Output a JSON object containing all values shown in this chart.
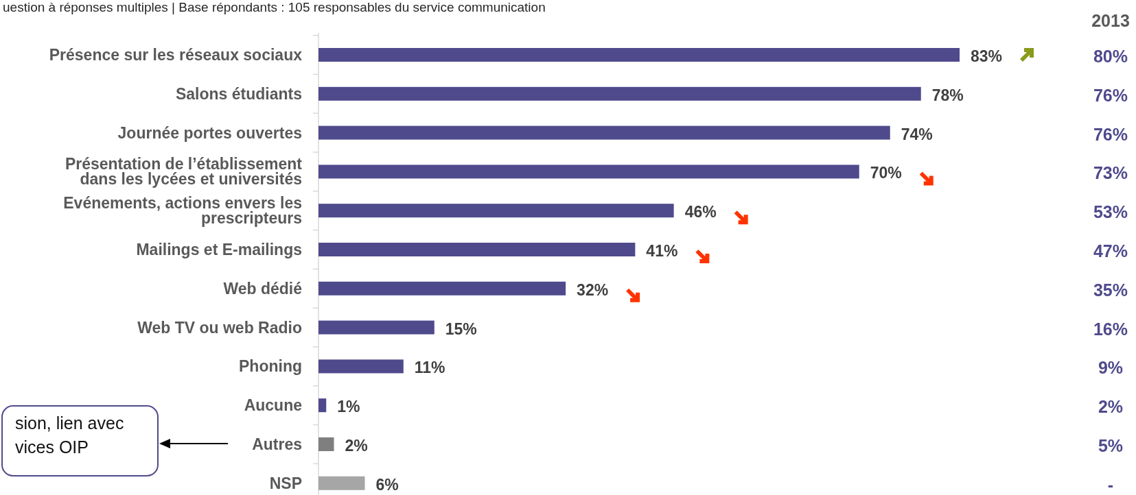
{
  "chart_data": {
    "type": "bar",
    "orientation": "horizontal",
    "categories": [
      "Présence sur les réseaux sociaux",
      "Salons étudiants",
      "Journée portes ouvertes",
      "Présentation de l’établissement\ndans les lycées et universités",
      "Evénements, actions envers les\nprescripteurs",
      "Mailings et E-mailings",
      "Web dédié",
      "Web TV ou web Radio",
      "Phoning",
      "Aucune",
      "Autres",
      "NSP"
    ],
    "values": [
      83,
      78,
      74,
      70,
      46,
      41,
      32,
      15,
      11,
      1,
      2,
      6
    ],
    "colors": [
      "#4f4a8c",
      "#4f4a8c",
      "#4f4a8c",
      "#4f4a8c",
      "#4f4a8c",
      "#4f4a8c",
      "#4f4a8c",
      "#4f4a8c",
      "#4f4a8c",
      "#4f4a8c",
      "#7f7f7f",
      "#a6a6a6"
    ],
    "value_labels": [
      "83%",
      "78%",
      "74%",
      "70%",
      "46%",
      "41%",
      "32%",
      "15%",
      "11%",
      "1%",
      "2%",
      "6%"
    ],
    "annotations": [
      "uestion à réponses multiples | Base répondants : 105 responsables du service communication",
      "2013",
      "80%",
      "76%",
      "76%",
      "73%",
      "53%",
      "47%",
      "35%",
      "16%",
      "9%",
      "2%",
      "5%",
      "-",
      "sion, lien avec\nvices OIP"
    ]
  }
}
